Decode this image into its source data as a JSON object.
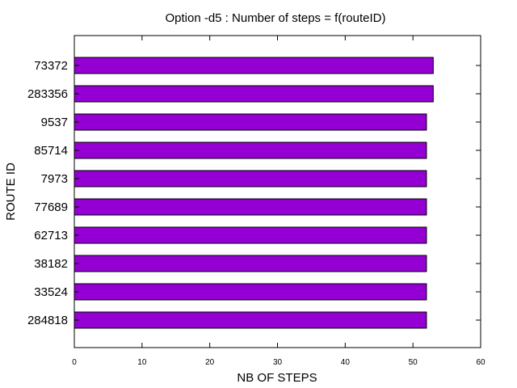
{
  "chart_data": {
    "type": "bar",
    "orientation": "horizontal",
    "title": "Option -d5 : Number of steps = f(routeID)",
    "xlabel": "NB OF STEPS",
    "ylabel": "ROUTE ID",
    "xlim": [
      0,
      60
    ],
    "xticks": [
      "0",
      "10",
      "20",
      "30",
      "40",
      "50",
      "60"
    ],
    "categories": [
      "73372",
      "283356",
      "9537",
      "85714",
      "7973",
      "77689",
      "62713",
      "38182",
      "33524",
      "284818"
    ],
    "values": [
      53,
      53,
      52,
      52,
      52,
      52,
      52,
      52,
      52,
      52
    ],
    "bar_color": "#9400d3",
    "grid": false,
    "legend": false
  }
}
